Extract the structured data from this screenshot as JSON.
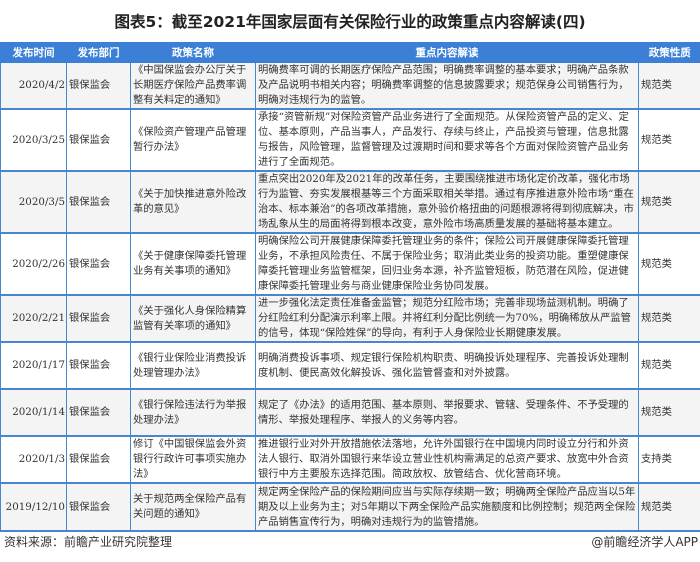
{
  "title": "图表5：截至2021年国家层面有关保险行业的政策重点内容解读(四)",
  "columns": [
    "发布时间",
    "发布部门",
    "政策名称",
    "重点内容解读",
    "政策性质"
  ],
  "rows": [
    {
      "date": "2020/4/2",
      "dept": "银保监会",
      "name": "《中国保监会办公厅关于长期医疗保险产品费率调整有关料定的通知》",
      "content": "明确费率可调的长期医疗保险产品范围；明确费率调整的基本要求；明确产品条款及产品说明书相关内容；明确费率调整的信息披露要求；规范保身公司销售行为，明确对违规行为的监管。",
      "type": "规范类"
    },
    {
      "date": "2020/3/25",
      "dept": "银保监会",
      "name": "《保险资产管理产品管理暂行办法》",
      "content": "承接“资管新规”对保险资管产品业务进行了全面规范。从保险资管产品的定义、定位、基本原则，产品当事人，产品发行、存续与终止，产品投资与管理，信息批露与报告，风险管理，监督管理及过渡期时间和要求等各个方面对保险资管产品业务进行了全面规范。",
      "type": "规范类"
    },
    {
      "date": "2020/3/5",
      "dept": "银保监会",
      "name": "《关于加快推进意外险改革的意见》",
      "content": "重点突出2020年及2021年的改革任务，主要围绕推进市场化定价改革，强化市场行为监管、夯实发展根基等三个方面采取相关举措。通过有序推进意外险市场“重在治本、标本兼治”的各项改革措施，意外验价格扭曲的问题根源将得到彻底解决，市场乱象从生的局面将得到根本改变，意外险市场高质量发展的基础将基本建立。",
      "type": "规范类"
    },
    {
      "date": "2020/2/26",
      "dept": "银保监会",
      "name": "《关于健康保障委托管理业务有关事项的通知》",
      "content": "明确保险公司开展健康保障委托管理业务的条件；保险公司开展健康保障委托管理业务，不承担风险责任、不属于保险业务；取消此类业务的投资功能。重塑健康保障委托管理业务监管框架，回归业务本源，补齐监管短板，防范潜在风险，促进健康保障委托管理业务与商业健康保险业务协同发展。",
      "type": "规范类"
    },
    {
      "date": "2020/2/21",
      "dept": "银保监会",
      "name": "《关于强化人身保险精算监管有关率项的通知》",
      "content": "进一步强化法定责任准备金监管；规范分红险市场；完善非现场益测机制。明确了分红险红利分配演示利率上限。并将红利分配比例统一为70%，明确稀放从严监管的信号，体现“保险姓保”的导向，有利于人身保险业长期健康发展。",
      "type": "规范类"
    },
    {
      "date": "2020/1/17",
      "dept": "银保监会",
      "name": "《银行业保险业消费投诉处理管理办法》",
      "content": "明确消费投诉事项、规定银行保险机构职责、明确投诉处理程序、完善投诉处理制度机制、便民高效化解投诉、强化监管督查和对外披露。",
      "type": "规范类"
    },
    {
      "date": "2020/1/14",
      "dept": "银保监会",
      "name": "《银行保险违法行为举报处理办法》",
      "content": "规定了《办法》的适用范围、基本原则、举报要求、管辖、受理条件、不予受理的情形、举报处理程序、举报人的义务等内容。",
      "type": "规范类"
    },
    {
      "date": "2020/1/3",
      "dept": "银保监会",
      "name": "修订《中国银保监会外资银行行政许可事项实施办法》",
      "content": "推进银行业对外开放措施依法落地，允许外国银行在中国境内同时设立分行和外资法人银行、取消外国银行来华设立营业性机构需满足的总资产要求、放宽中外合资银行中方主要股东选择范围。简政放权、放管结合、优化营商环境。",
      "type": "支持类"
    },
    {
      "date": "2019/12/10",
      "dept": "银保监会",
      "name": "关于规范两全保险产品有关问题的通知》",
      "content": "规定两全保险产品的保险期间应当与实际存续期一致；明确两全保险产品应当以5年期及以上业务为主；对5年期以下两全保险产品实施额度和比例控制；规范两全保险产品销售宣传行为，明确对违规行为的监管措施。",
      "type": "规范类"
    }
  ],
  "footer": {
    "source": "资料来源：前瞻产业研究院整理",
    "brand": "@前瞻经济学人APP"
  },
  "colors": {
    "header": "#3b7fd6",
    "border": "#4a86d0"
  }
}
